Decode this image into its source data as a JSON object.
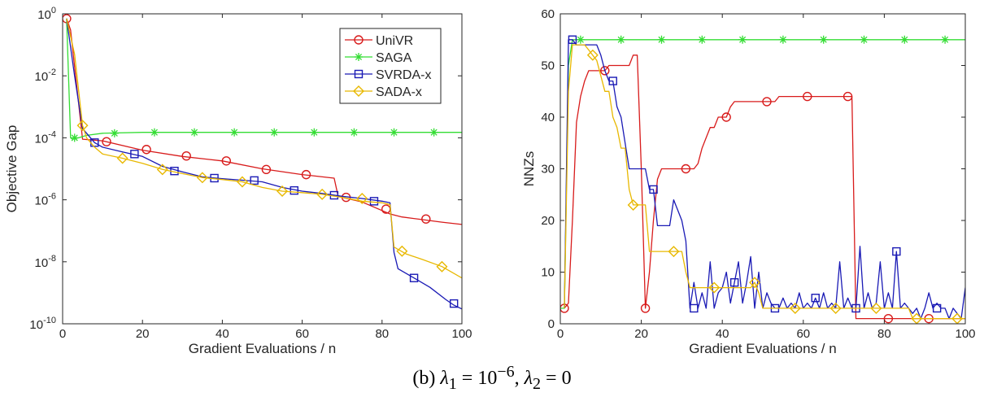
{
  "colors": {
    "UniVR": "#d81b1b",
    "SAGA": "#33dd33",
    "SVRDA-x": "#1a1ab5",
    "SADA-x": "#e8b800"
  },
  "caption": {
    "label": "(b)",
    "l1_sym": "λ",
    "l1_sub": "1",
    "eq": "=",
    "l1_base": "10",
    "l1_exp": "−6",
    "sep": ",",
    "l2_sym": "λ",
    "l2_sub": "2",
    "l2_val": "= 0"
  },
  "chart_data": [
    {
      "type": "line",
      "xlabel": "Gradient Evaluations / n",
      "ylabel": "Objective Gap",
      "y_scale": "log",
      "xlim": [
        0,
        100
      ],
      "ylim": [
        1e-10,
        1
      ],
      "xticks": [
        "0",
        "20",
        "40",
        "60",
        "80",
        "100"
      ],
      "yticks": [
        {
          "base": "10",
          "exp": "-10",
          "value": 1e-10
        },
        {
          "base": "10",
          "exp": "-8",
          "value": 1e-08
        },
        {
          "base": "10",
          "exp": "-6",
          "value": 1e-06
        },
        {
          "base": "10",
          "exp": "-4",
          "value": 0.0001
        },
        {
          "base": "10",
          "exp": "-2",
          "value": 0.01
        },
        {
          "base": "10",
          "exp": "0",
          "value": 1
        }
      ],
      "grid": false,
      "legend": "top-right",
      "series": [
        {
          "name": "UniVR",
          "marker": "circle",
          "x": [
            1,
            2,
            5,
            10,
            20,
            30,
            40,
            50,
            60,
            68,
            69,
            70,
            75,
            80,
            82,
            85,
            90,
            95,
            100
          ],
          "y": [
            0.7,
            0.3,
            9e-05,
            8e-05,
            4e-05,
            2.5e-05,
            1.8e-05,
            1e-05,
            6.5e-06,
            5e-06,
            1.3e-06,
            1.2e-06,
            8.5e-07,
            4.5e-07,
            3.5e-07,
            2.8e-07,
            2.3e-07,
            1.9e-07,
            1.6e-07
          ],
          "markers_x": [
            1,
            11,
            21,
            31,
            41,
            51,
            61,
            71,
            81,
            91
          ],
          "markers_y": [
            0.7,
            7.5e-05,
            4.2e-05,
            2.6e-05,
            1.8e-05,
            9.5e-06,
            6.5e-06,
            1.2e-06,
            5e-07,
            2.4e-07
          ]
        },
        {
          "name": "SAGA",
          "marker": "star",
          "x": [
            1,
            2,
            2.5,
            4,
            6,
            10,
            20,
            30,
            40,
            50,
            60,
            70,
            80,
            90,
            100
          ],
          "y": [
            0.7,
            0.0001,
            9e-05,
            0.0001,
            0.00012,
            0.00014,
            0.00015,
            0.00015,
            0.00015,
            0.00015,
            0.00015,
            0.00015,
            0.00015,
            0.00015,
            0.00015
          ],
          "markers_x": [
            3,
            13,
            23,
            33,
            43,
            53,
            63,
            73,
            83,
            93
          ],
          "markers_y": [
            0.0001,
            0.00014,
            0.00015,
            0.00015,
            0.00015,
            0.00015,
            0.00015,
            0.00015,
            0.00015,
            0.00015
          ]
        },
        {
          "name": "SVRDA-x",
          "marker": "square",
          "x": [
            1,
            3,
            5,
            8,
            10,
            15,
            20,
            25,
            30,
            35,
            40,
            45,
            50,
            55,
            60,
            65,
            70,
            75,
            80,
            82,
            83,
            84,
            88,
            92,
            96,
            98,
            100
          ],
          "y": [
            0.7,
            0.01,
            0.0002,
            7e-05,
            5e-05,
            3.5e-05,
            2.5e-05,
            1.2e-05,
            8e-06,
            5.5e-06,
            4.8e-06,
            4.3e-06,
            3.8e-06,
            2.5e-06,
            1.9e-06,
            1.6e-06,
            1.3e-06,
            1.1e-06,
            9e-07,
            8e-07,
            2e-08,
            6e-09,
            3e-09,
            1.5e-09,
            6e-10,
            4e-10,
            3e-10
          ],
          "markers_x": [
            8,
            18,
            28,
            38,
            48,
            58,
            68,
            78,
            88,
            98
          ],
          "markers_y": [
            7e-05,
            3e-05,
            8.5e-06,
            5e-06,
            4.2e-06,
            2e-06,
            1.4e-06,
            9e-07,
            3e-09,
            4.5e-10
          ]
        },
        {
          "name": "SADA-x",
          "marker": "diamond",
          "x": [
            1,
            3,
            5,
            6,
            8,
            10,
            15,
            20,
            25,
            30,
            35,
            40,
            45,
            50,
            55,
            60,
            65,
            70,
            75,
            80,
            82,
            83,
            84,
            86,
            90,
            95,
            100
          ],
          "y": [
            0.7,
            0.05,
            0.00025,
            0.0001,
            5e-05,
            3e-05,
            2.2e-05,
            1.5e-05,
            9.5e-06,
            7e-06,
            5.2e-06,
            4.5e-06,
            3.8e-06,
            2.5e-06,
            1.9e-06,
            1.7e-06,
            1.5e-06,
            1.2e-06,
            9e-07,
            8e-07,
            7e-07,
            3e-08,
            2.5e-08,
            1.8e-08,
            1.2e-08,
            7e-09,
            3e-09
          ],
          "markers_x": [
            5,
            15,
            25,
            35,
            45,
            55,
            65,
            75,
            85,
            95
          ],
          "markers_y": [
            0.00025,
            2.2e-05,
            9.5e-06,
            5.2e-06,
            3.8e-06,
            1.9e-06,
            1.5e-06,
            1.1e-06,
            2.2e-08,
            7e-09
          ]
        }
      ]
    },
    {
      "type": "line",
      "xlabel": "Gradient Evaluations / n",
      "ylabel": "NNZs",
      "y_scale": "linear",
      "xlim": [
        0,
        100
      ],
      "ylim": [
        0,
        60
      ],
      "xticks": [
        "0",
        "20",
        "40",
        "60",
        "80",
        "100"
      ],
      "yticks": [
        "0",
        "10",
        "20",
        "30",
        "40",
        "50",
        "60"
      ],
      "grid": false,
      "legend": "none",
      "series": [
        {
          "name": "UniVR",
          "marker": "circle",
          "x": [
            1,
            2,
            3,
            4,
            5,
            6,
            7,
            8,
            9,
            10,
            11,
            12,
            13,
            14,
            15,
            16,
            17,
            18,
            19,
            20,
            21,
            22,
            23,
            24,
            25,
            26,
            27,
            28,
            29,
            30,
            31,
            32,
            33,
            34,
            35,
            36,
            37,
            38,
            39,
            40,
            41,
            42,
            43,
            44,
            45,
            46,
            47,
            48,
            49,
            50,
            51,
            52,
            53,
            54,
            55,
            56,
            57,
            58,
            59,
            60,
            61,
            62,
            63,
            64,
            65,
            66,
            67,
            68,
            69,
            70,
            71,
            72,
            73,
            74,
            75,
            76,
            77,
            78,
            79,
            80,
            81,
            82,
            83,
            84,
            85,
            86,
            87,
            88,
            89,
            90,
            91,
            92,
            93,
            94,
            95,
            96,
            97,
            98,
            99,
            100
          ],
          "y": [
            3,
            4,
            20,
            39,
            44,
            47,
            49,
            49,
            49,
            49,
            49,
            50,
            50,
            50,
            50,
            50,
            50,
            52,
            52,
            30,
            3,
            10,
            20,
            28,
            30,
            30,
            30,
            30,
            30,
            30,
            30,
            30,
            30,
            31,
            34,
            36,
            38,
            38,
            40,
            40,
            40,
            42,
            43,
            43,
            43,
            43,
            43,
            43,
            43,
            43,
            43,
            43,
            43,
            44,
            44,
            44,
            44,
            44,
            44,
            44,
            44,
            44,
            44,
            44,
            44,
            44,
            44,
            44,
            44,
            44,
            44,
            44,
            1,
            1,
            1,
            1,
            1,
            1,
            1,
            1,
            1,
            1,
            1,
            1,
            1,
            1,
            1,
            1,
            1,
            1,
            1,
            1,
            1,
            1,
            1,
            1,
            1,
            1,
            1,
            1
          ],
          "markers_x": [
            1,
            11,
            21,
            31,
            41,
            51,
            61,
            71,
            81,
            91
          ],
          "markers_y": [
            3,
            49,
            3,
            30,
            40,
            43,
            44,
            44,
            1,
            1
          ]
        },
        {
          "name": "SAGA",
          "marker": "star",
          "x": [
            0,
            1,
            2,
            3,
            4,
            10,
            20,
            30,
            40,
            50,
            60,
            70,
            80,
            90,
            100
          ],
          "y": [
            3,
            3,
            50,
            55,
            55,
            55,
            55,
            55,
            55,
            55,
            55,
            55,
            55,
            55,
            55
          ],
          "markers_x": [
            5,
            15,
            25,
            35,
            45,
            55,
            65,
            75,
            85,
            95
          ],
          "markers_y": [
            55,
            55,
            55,
            55,
            55,
            55,
            55,
            55,
            55,
            55
          ]
        },
        {
          "name": "SVRDA-x",
          "marker": "square",
          "x": [
            1,
            2,
            3,
            4,
            5,
            6,
            7,
            8,
            9,
            10,
            11,
            12,
            13,
            14,
            15,
            16,
            17,
            18,
            19,
            20,
            21,
            22,
            23,
            24,
            25,
            26,
            27,
            28,
            29,
            30,
            31,
            32,
            33,
            34,
            35,
            36,
            37,
            38,
            39,
            40,
            41,
            42,
            43,
            44,
            45,
            46,
            47,
            48,
            49,
            50,
            51,
            52,
            53,
            54,
            55,
            56,
            57,
            58,
            59,
            60,
            61,
            62,
            63,
            64,
            65,
            66,
            67,
            68,
            69,
            70,
            71,
            72,
            73,
            74,
            75,
            76,
            77,
            78,
            79,
            80,
            81,
            82,
            83,
            84,
            85,
            86,
            87,
            88,
            89,
            90,
            91,
            92,
            93,
            94,
            95,
            96,
            97,
            98,
            99,
            100
          ],
          "y": [
            3,
            55,
            55,
            54,
            54,
            54,
            54,
            54,
            54,
            52,
            49,
            47,
            47,
            42,
            40,
            35,
            30,
            30,
            30,
            30,
            30,
            26,
            26,
            19,
            19,
            19,
            19,
            24,
            22,
            20,
            16,
            3,
            8,
            3,
            6,
            3,
            12,
            3,
            6,
            7,
            10,
            4,
            8,
            12,
            4,
            8,
            13,
            3,
            10,
            3,
            6,
            4,
            3,
            3,
            5,
            3,
            4,
            3,
            6,
            3,
            4,
            3,
            5,
            3,
            6,
            3,
            4,
            3,
            12,
            3,
            5,
            3,
            3,
            15,
            3,
            6,
            3,
            4,
            12,
            3,
            6,
            3,
            14,
            3,
            4,
            3,
            2,
            3,
            1,
            3,
            6,
            3,
            4,
            3,
            3,
            1,
            3,
            2,
            1,
            7
          ],
          "markers_x": [
            3,
            13,
            23,
            33,
            43,
            53,
            63,
            73,
            83,
            93
          ],
          "markers_y": [
            55,
            47,
            26,
            3,
            8,
            3,
            5,
            3,
            14,
            3
          ]
        },
        {
          "name": "SADA-x",
          "marker": "diamond",
          "x": [
            1,
            2,
            3,
            4,
            5,
            6,
            7,
            8,
            9,
            10,
            11,
            12,
            13,
            14,
            15,
            16,
            17,
            18,
            19,
            20,
            21,
            22,
            23,
            24,
            25,
            26,
            27,
            28,
            29,
            30,
            31,
            32,
            33,
            34,
            35,
            36,
            37,
            38,
            39,
            40,
            41,
            42,
            43,
            44,
            45,
            46,
            47,
            48,
            49,
            50,
            51,
            52,
            53,
            54,
            55,
            56,
            57,
            58,
            59,
            60,
            61,
            62,
            63,
            64,
            65,
            66,
            67,
            68,
            69,
            70,
            71,
            72,
            73,
            74,
            75,
            76,
            77,
            78,
            79,
            80,
            81,
            82,
            83,
            84,
            85,
            86,
            87,
            88,
            89,
            90,
            91,
            92,
            93,
            94,
            95,
            96,
            97,
            98,
            99,
            100
          ],
          "y": [
            3,
            45,
            54,
            54,
            54,
            54,
            53,
            52,
            51,
            48,
            45,
            45,
            40,
            38,
            34,
            34,
            26,
            23,
            23,
            23,
            23,
            14,
            14,
            14,
            14,
            14,
            14,
            14,
            14,
            14,
            10,
            7,
            7,
            7,
            7,
            7,
            7,
            7,
            7,
            7,
            7,
            7,
            7,
            7,
            7,
            7,
            7,
            8,
            6,
            3,
            3,
            3,
            3,
            3,
            3,
            3,
            3,
            3,
            3,
            3,
            3,
            3,
            3,
            3,
            3,
            3,
            3,
            3,
            3,
            3,
            3,
            3,
            3,
            3,
            3,
            3,
            3,
            3,
            3,
            3,
            3,
            3,
            3,
            3,
            3,
            3,
            1,
            1,
            1,
            1,
            1,
            1,
            1,
            1,
            1,
            1,
            1,
            1,
            1,
            1
          ],
          "markers_x": [
            8,
            18,
            28,
            38,
            48,
            58,
            68,
            78,
            88,
            98
          ],
          "markers_y": [
            52,
            23,
            14,
            7,
            8,
            3,
            3,
            3,
            1,
            1
          ]
        }
      ]
    }
  ]
}
